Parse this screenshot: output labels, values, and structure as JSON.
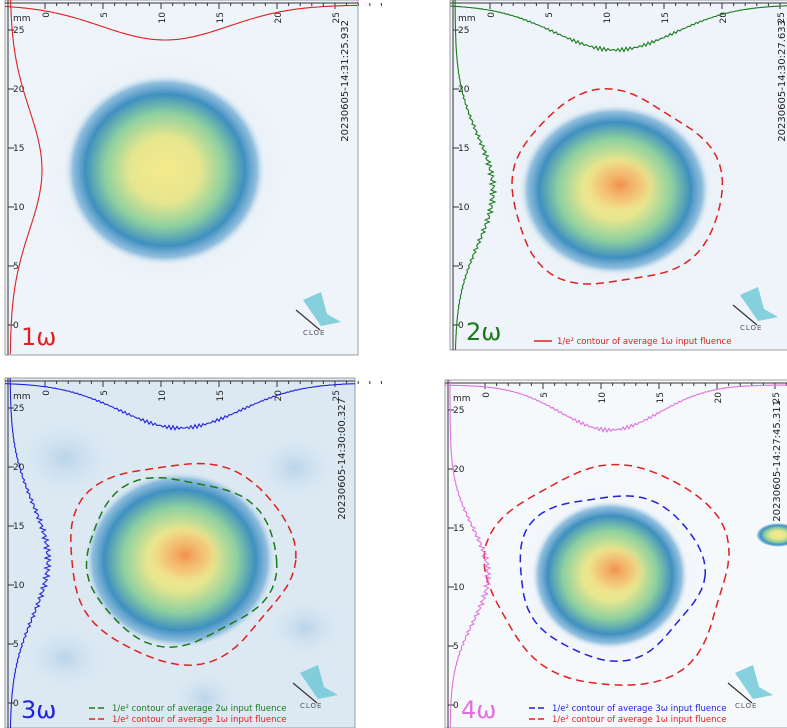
{
  "panels": [
    {
      "harmonic": "1ω",
      "timestamp": "20230605-14:31:25.932",
      "top_ticks": [
        "0",
        "5",
        "10",
        "15",
        "20",
        "25"
      ],
      "left_ticks": [
        "mm",
        "25",
        "20",
        "15",
        "10",
        "5",
        "0"
      ],
      "legend": [],
      "logo": "CLOE"
    },
    {
      "harmonic": "2ω",
      "timestamp": "20230605-14:30:27.633",
      "top_ticks": [
        "0",
        "5",
        "10",
        "15",
        "20",
        "25"
      ],
      "left_ticks": [
        "mm",
        "25",
        "20",
        "15",
        "10",
        "5",
        "0"
      ],
      "legend": [
        "1/e² contour of average 1ω input fluence"
      ],
      "logo": "CLOE"
    },
    {
      "harmonic": "3ω",
      "timestamp": "20230605-14:30:00.327",
      "top_ticks": [
        "0",
        "5",
        "10",
        "15",
        "20",
        "25"
      ],
      "left_ticks": [
        "mm",
        "25",
        "20",
        "15",
        "10",
        "5",
        "0"
      ],
      "legend": [
        "1/e² contour of average 2ω input fluence",
        "1/e² contour of average 1ω input fluence"
      ],
      "logo": "CLOE"
    },
    {
      "harmonic": "4ω",
      "timestamp": "20230605-14:27:45.311",
      "top_ticks": [
        "0",
        "5",
        "10",
        "15",
        "20",
        "25"
      ],
      "left_ticks": [
        "mm",
        "25",
        "20",
        "15",
        "10",
        "5",
        "0"
      ],
      "legend": [
        "1/e² contour of average 3ω input fluence",
        "1/e² contour of average 1ω input fluence"
      ],
      "logo": "CLOE"
    }
  ]
}
